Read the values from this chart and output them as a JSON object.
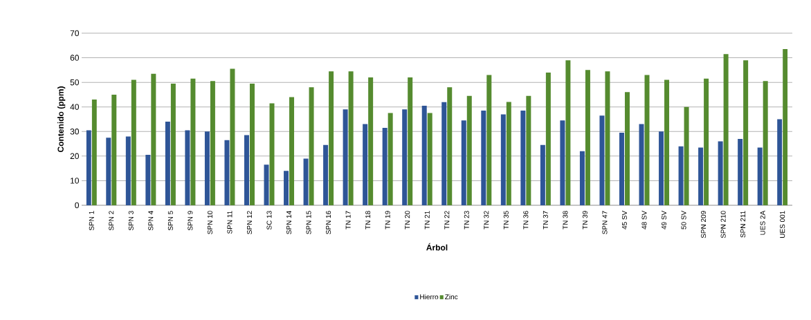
{
  "chart_data": {
    "type": "bar",
    "xlabel": "Árbol",
    "ylabel": "Contenido (ppm)",
    "categories": [
      "SPN 1",
      "SPN 2",
      "SPN 3",
      "SPN 4",
      "SPN 5",
      "SPN 9",
      "SPN 10",
      "SPN 11",
      "SPN 12",
      "SC 13",
      "SPN 14",
      "SPN 15",
      "SPN 16",
      "TN 17",
      "TN 18",
      "TN 19",
      "TN 20",
      "TN 21",
      "TN 22",
      "TN 23",
      "TN 32",
      "TN 35",
      "TN 36",
      "TN 37",
      "TN 38",
      "TN 39",
      "SPN 47",
      "45 SV",
      "48 SV",
      "49 SV",
      "50 SV",
      "SPN 209",
      "SPN 210",
      "SPN 211",
      "UES 2A",
      "UES 001"
    ],
    "series": [
      {
        "name": "Hierro",
        "color": "#2e5597",
        "values": [
          30.5,
          27.5,
          28,
          20.5,
          34,
          30.5,
          30,
          26.5,
          28.5,
          16.5,
          14,
          19,
          24.5,
          39,
          33,
          31.5,
          39,
          40.5,
          42,
          34.5,
          38.5,
          37,
          38.5,
          24.5,
          34.5,
          22,
          36.5,
          29.5,
          33,
          30,
          24,
          23.5,
          26,
          27,
          23.5,
          35
        ]
      },
      {
        "name": "Zinc",
        "color": "#558b2f",
        "values": [
          43,
          45,
          51,
          53.5,
          49.5,
          51.5,
          50.5,
          55.5,
          49.5,
          41.5,
          44,
          48,
          54.5,
          54.5,
          52,
          37.5,
          52,
          37.5,
          48,
          44.5,
          53,
          42,
          44.5,
          54,
          59,
          55,
          54.5,
          46,
          53,
          51,
          40,
          51.5,
          61.5,
          59,
          50.5,
          63.5
        ]
      }
    ],
    "ylim": [
      0,
      70
    ],
    "yticks": [
      0,
      10,
      20,
      30,
      40,
      50,
      60,
      70
    ],
    "grid": "y",
    "legend": "bottom"
  }
}
